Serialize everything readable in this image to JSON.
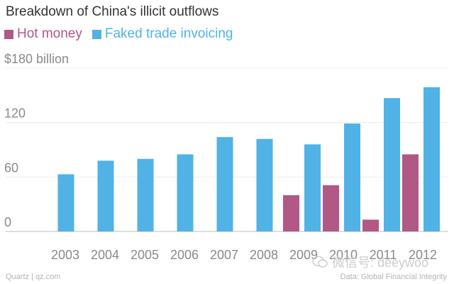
{
  "chart_data": {
    "type": "bar",
    "title": "Breakdown of China's illicit outflows",
    "categories": [
      "2003",
      "2004",
      "2005",
      "2006",
      "2007",
      "2008",
      "2009",
      "2010",
      "2011",
      "2012"
    ],
    "series": [
      {
        "name": "Hot money",
        "color": "#b15885",
        "values": [
          0,
          0,
          0,
          0,
          0,
          0,
          40,
          51,
          13,
          85
        ]
      },
      {
        "name": "Faked trade invoicing",
        "color": "#51b2e5",
        "values": [
          63,
          78,
          80,
          85,
          104,
          102,
          96,
          119,
          147,
          159
        ]
      }
    ],
    "ylim": [
      0,
      180
    ],
    "yticks": [
      0,
      60,
      120,
      180
    ],
    "ytick_labels": [
      "0",
      "60",
      "120",
      "$180 billion"
    ],
    "grid": true
  },
  "footer": {
    "source_left": "Quartz | qz.com",
    "source_right": "Data: Global Financial Integrity"
  },
  "watermark": {
    "text": "微信号: deeywoo"
  }
}
